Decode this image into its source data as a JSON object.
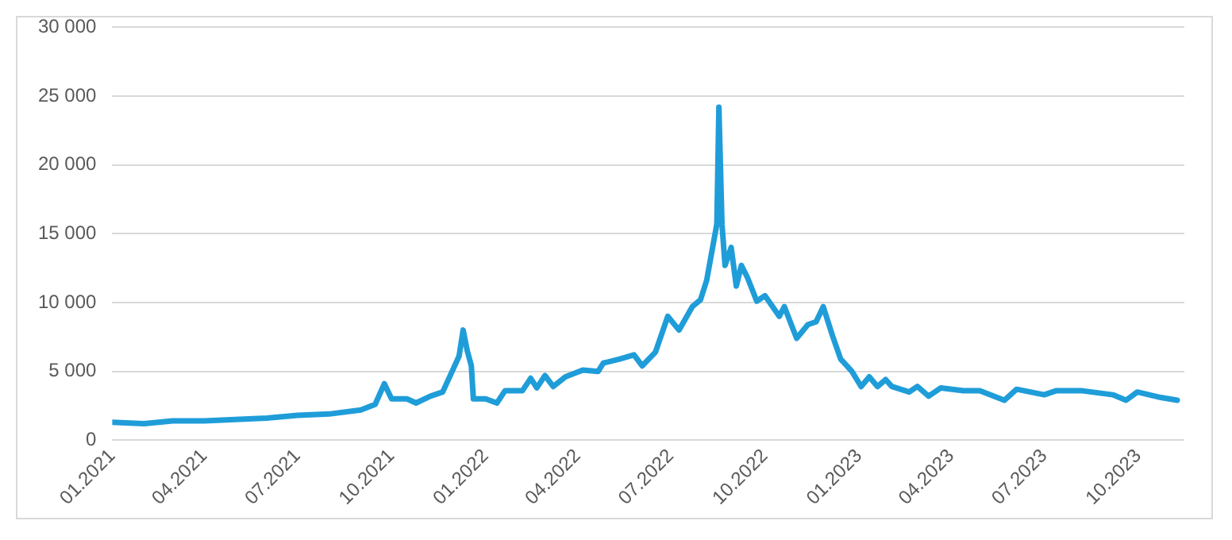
{
  "chart_data": {
    "type": "line",
    "grid": "y",
    "legend": false,
    "marker": "none",
    "line_style": "solid",
    "x": [
      "2021-01-01",
      "2021-02-01",
      "2021-03-01",
      "2021-04-01",
      "2021-05-01",
      "2021-06-01",
      "2021-07-01",
      "2021-08-01",
      "2021-09-01",
      "2021-09-15",
      "2021-09-24",
      "2021-10-01",
      "2021-10-16",
      "2021-10-25",
      "2021-11-08",
      "2021-11-20",
      "2021-11-28",
      "2021-12-06",
      "2021-12-10",
      "2021-12-14",
      "2021-12-18",
      "2021-12-20",
      "2022-01-01",
      "2022-01-12",
      "2022-01-20",
      "2022-02-06",
      "2022-02-14",
      "2022-02-20",
      "2022-02-28",
      "2022-03-08",
      "2022-03-20",
      "2022-04-06",
      "2022-04-21",
      "2022-04-26",
      "2022-05-12",
      "2022-05-26",
      "2022-06-03",
      "2022-06-16",
      "2022-06-28",
      "2022-07-09",
      "2022-07-22",
      "2022-07-30",
      "2022-08-05",
      "2022-08-15",
      "2022-08-17",
      "2022-08-20",
      "2022-08-23",
      "2022-08-29",
      "2022-09-03",
      "2022-09-08",
      "2022-09-14",
      "2022-09-23",
      "2022-10-01",
      "2022-10-15",
      "2022-10-20",
      "2022-11-01",
      "2022-11-12",
      "2022-11-20",
      "2022-11-27",
      "2022-12-06",
      "2022-12-14",
      "2022-12-25",
      "2023-01-03",
      "2023-01-11",
      "2023-01-19",
      "2023-01-27",
      "2023-02-02",
      "2023-02-19",
      "2023-02-27",
      "2023-03-10",
      "2023-03-22",
      "2023-04-13",
      "2023-04-29",
      "2023-05-23",
      "2023-06-04",
      "2023-07-01",
      "2023-07-13",
      "2023-08-06",
      "2023-09-06",
      "2023-09-19",
      "2023-09-30",
      "2023-10-23",
      "2023-11-08"
    ],
    "series": [
      {
        "color": "#1f9dd9",
        "values": [
          1300,
          1200,
          1400,
          1400,
          1500,
          1600,
          1800,
          1900,
          2200,
          2600,
          4100,
          3000,
          3000,
          2700,
          3200,
          3500,
          4800,
          6100,
          8000,
          6500,
          5400,
          3000,
          3000,
          2700,
          3600,
          3600,
          4500,
          3800,
          4700,
          3900,
          4600,
          5100,
          5000,
          5600,
          5900,
          6200,
          5400,
          6400,
          9000,
          8000,
          9700,
          10200,
          11600,
          15700,
          24200,
          15700,
          12700,
          14000,
          11200,
          12700,
          11800,
          10100,
          10500,
          9000,
          9700,
          7400,
          8400,
          8600,
          9700,
          7600,
          5900,
          5000,
          3900,
          4600,
          3900,
          4400,
          3900,
          3500,
          3900,
          3200,
          3800,
          3600,
          3600,
          2900,
          3700,
          3300,
          3600,
          3600,
          3300,
          2900,
          3500,
          3100,
          2900
        ]
      }
    ],
    "xlim": [
      "2021-01-01",
      "2023-11-15"
    ],
    "xticks": [
      {
        "value": "2021-01-01",
        "label": "01.2021"
      },
      {
        "value": "2021-04-01",
        "label": "04.2021"
      },
      {
        "value": "2021-07-01",
        "label": "07.2021"
      },
      {
        "value": "2021-10-01",
        "label": "10.2021"
      },
      {
        "value": "2022-01-01",
        "label": "01.2022"
      },
      {
        "value": "2022-04-01",
        "label": "04.2022"
      },
      {
        "value": "2022-07-01",
        "label": "07.2022"
      },
      {
        "value": "2022-10-01",
        "label": "10.2022"
      },
      {
        "value": "2023-01-01",
        "label": "01.2023"
      },
      {
        "value": "2023-04-01",
        "label": "04.2023"
      },
      {
        "value": "2023-07-01",
        "label": "07.2023"
      },
      {
        "value": "2023-10-01",
        "label": "10.2023"
      }
    ],
    "ylim": [
      0,
      30000
    ],
    "yticks": [
      0,
      {
        "value": 5000,
        "label": "5 000"
      },
      {
        "value": 10000,
        "label": "10 000"
      },
      {
        "value": 15000,
        "label": "15 000"
      },
      {
        "value": 20000,
        "label": "20 000"
      },
      {
        "value": 25000,
        "label": "25 000"
      },
      {
        "value": 30000,
        "label": "30 000"
      }
    ]
  }
}
